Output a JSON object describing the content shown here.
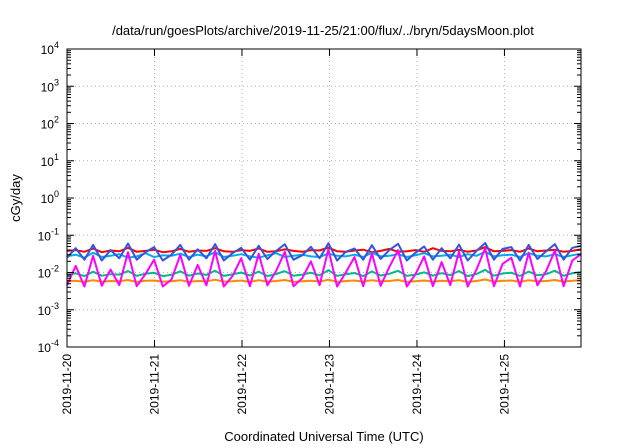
{
  "chart_data": {
    "type": "line",
    "title": "/data/run/goesPlots/archive/2019-11-25/21:00/flux/../bryn/5daysMoon.plot",
    "xlabel": "Coordinated Universal Time (UTC)",
    "ylabel": "cGy/day",
    "yscale": "log",
    "ylim": [
      0.0001,
      10000
    ],
    "xlim": [
      "2019-11-20T00:00",
      "2019-11-25T21:00"
    ],
    "grid": true,
    "x_ticks": [
      "2019-11-20",
      "2019-11-21",
      "2019-11-22",
      "2019-11-23",
      "2019-11-24",
      "2019-11-25"
    ],
    "y_ticks": [
      {
        "base": "10",
        "exp": "-4",
        "value": 0.0001
      },
      {
        "base": "10",
        "exp": "-3",
        "value": 0.001
      },
      {
        "base": "10",
        "exp": "-2",
        "value": 0.01
      },
      {
        "base": "10",
        "exp": "-1",
        "value": 0.1
      },
      {
        "base": "10",
        "exp": "0",
        "value": 1
      },
      {
        "base": "10",
        "exp": "1",
        "value": 10
      },
      {
        "base": "10",
        "exp": "2",
        "value": 100
      },
      {
        "base": "10",
        "exp": "3",
        "value": 1000
      },
      {
        "base": "10",
        "exp": "4",
        "value": 10000
      }
    ],
    "series": [
      {
        "color": "#ff0000",
        "width": 2,
        "values": [
          0.038,
          0.04,
          0.036,
          0.044,
          0.035,
          0.039,
          0.037,
          0.046,
          0.036,
          0.038,
          0.041,
          0.035,
          0.037,
          0.043,
          0.036,
          0.039,
          0.038,
          0.045,
          0.037,
          0.036,
          0.04,
          0.038,
          0.044,
          0.036,
          0.037,
          0.042,
          0.038,
          0.036,
          0.04,
          0.039,
          0.047,
          0.037,
          0.036,
          0.039,
          0.041,
          0.035,
          0.038,
          0.043,
          0.036,
          0.037,
          0.04,
          0.036,
          0.045,
          0.038,
          0.037,
          0.041,
          0.036,
          0.039,
          0.048,
          0.037,
          0.038,
          0.04,
          0.036,
          0.044,
          0.037,
          0.039,
          0.041,
          0.036,
          0.038,
          0.042
        ]
      },
      {
        "color": "#00aaee",
        "width": 2,
        "values": [
          0.027,
          0.03,
          0.025,
          0.034,
          0.026,
          0.028,
          0.031,
          0.025,
          0.027,
          0.033,
          0.026,
          0.029,
          0.028,
          0.032,
          0.026,
          0.03,
          0.027,
          0.035,
          0.026,
          0.028,
          0.031,
          0.027,
          0.025,
          0.029,
          0.033,
          0.026,
          0.028,
          0.03,
          0.027,
          0.026,
          0.032,
          0.028,
          0.027,
          0.03,
          0.026,
          0.034,
          0.027,
          0.028,
          0.031,
          0.026,
          0.029,
          0.033,
          0.027,
          0.028,
          0.03,
          0.026,
          0.031,
          0.028,
          0.036,
          0.027,
          0.029,
          0.03,
          0.026,
          0.033,
          0.028,
          0.027,
          0.031,
          0.026,
          0.029,
          0.032
        ]
      },
      {
        "color": "#3355dd",
        "width": 2,
        "values": [
          0.025,
          0.045,
          0.022,
          0.055,
          0.021,
          0.04,
          0.024,
          0.06,
          0.022,
          0.035,
          0.048,
          0.021,
          0.03,
          0.055,
          0.022,
          0.042,
          0.024,
          0.058,
          0.021,
          0.033,
          0.046,
          0.022,
          0.052,
          0.023,
          0.038,
          0.057,
          0.022,
          0.029,
          0.049,
          0.024,
          0.061,
          0.021,
          0.036,
          0.044,
          0.022,
          0.054,
          0.023,
          0.04,
          0.059,
          0.021,
          0.034,
          0.05,
          0.022,
          0.045,
          0.024,
          0.056,
          0.021,
          0.038,
          0.062,
          0.022,
          0.043,
          0.048,
          0.021,
          0.055,
          0.023,
          0.037,
          0.058,
          0.022,
          0.046,
          0.052
        ]
      },
      {
        "color": "#00bb88",
        "width": 2,
        "values": [
          0.0085,
          0.0095,
          0.008,
          0.0105,
          0.0082,
          0.009,
          0.0088,
          0.011,
          0.0081,
          0.0093,
          0.0098,
          0.008,
          0.0087,
          0.0108,
          0.0082,
          0.0094,
          0.0086,
          0.0112,
          0.0081,
          0.0089,
          0.01,
          0.0083,
          0.0106,
          0.008,
          0.0091,
          0.0109,
          0.0082,
          0.0088,
          0.0099,
          0.0084,
          0.0115,
          0.0081,
          0.009,
          0.0097,
          0.008,
          0.0107,
          0.0083,
          0.0092,
          0.0111,
          0.0081,
          0.0088,
          0.0101,
          0.0082,
          0.0096,
          0.0085,
          0.011,
          0.008,
          0.0091,
          0.0118,
          0.0082,
          0.0094,
          0.0099,
          0.0081,
          0.0106,
          0.0084,
          0.009,
          0.0112,
          0.0082,
          0.0095,
          0.0103
        ]
      },
      {
        "color": "#ff8800",
        "width": 2,
        "values": [
          0.0058,
          0.006,
          0.0056,
          0.0062,
          0.0057,
          0.0059,
          0.0058,
          0.0063,
          0.0056,
          0.006,
          0.0061,
          0.0057,
          0.0058,
          0.0062,
          0.0056,
          0.0059,
          0.0058,
          0.0064,
          0.0057,
          0.0058,
          0.0061,
          0.0056,
          0.0062,
          0.0057,
          0.0059,
          0.0063,
          0.0056,
          0.0058,
          0.006,
          0.0057,
          0.0064,
          0.0056,
          0.0059,
          0.0061,
          0.0057,
          0.0062,
          0.0058,
          0.0059,
          0.0063,
          0.0056,
          0.0058,
          0.0061,
          0.0057,
          0.006,
          0.0058,
          0.0062,
          0.0056,
          0.0059,
          0.0065,
          0.0057,
          0.006,
          0.0061,
          0.0056,
          0.0062,
          0.0058,
          0.0059,
          0.0063,
          0.0057,
          0.006,
          0.0062
        ]
      },
      {
        "color": "#ff00ff",
        "width": 2,
        "values": [
          0.0045,
          0.015,
          0.0042,
          0.028,
          0.0044,
          0.012,
          0.0046,
          0.035,
          0.0043,
          0.009,
          0.022,
          0.0042,
          0.0065,
          0.03,
          0.0044,
          0.016,
          0.0045,
          0.038,
          0.0042,
          0.008,
          0.024,
          0.0043,
          0.032,
          0.0045,
          0.011,
          0.036,
          0.0043,
          0.007,
          0.02,
          0.0046,
          0.042,
          0.0042,
          0.01,
          0.026,
          0.0043,
          0.033,
          0.0044,
          0.014,
          0.04,
          0.0042,
          0.009,
          0.027,
          0.0043,
          0.019,
          0.0046,
          0.037,
          0.0042,
          0.012,
          0.045,
          0.0043,
          0.017,
          0.025,
          0.0042,
          0.034,
          0.0045,
          0.011,
          0.039,
          0.0043,
          0.021,
          0.031
        ]
      }
    ]
  }
}
